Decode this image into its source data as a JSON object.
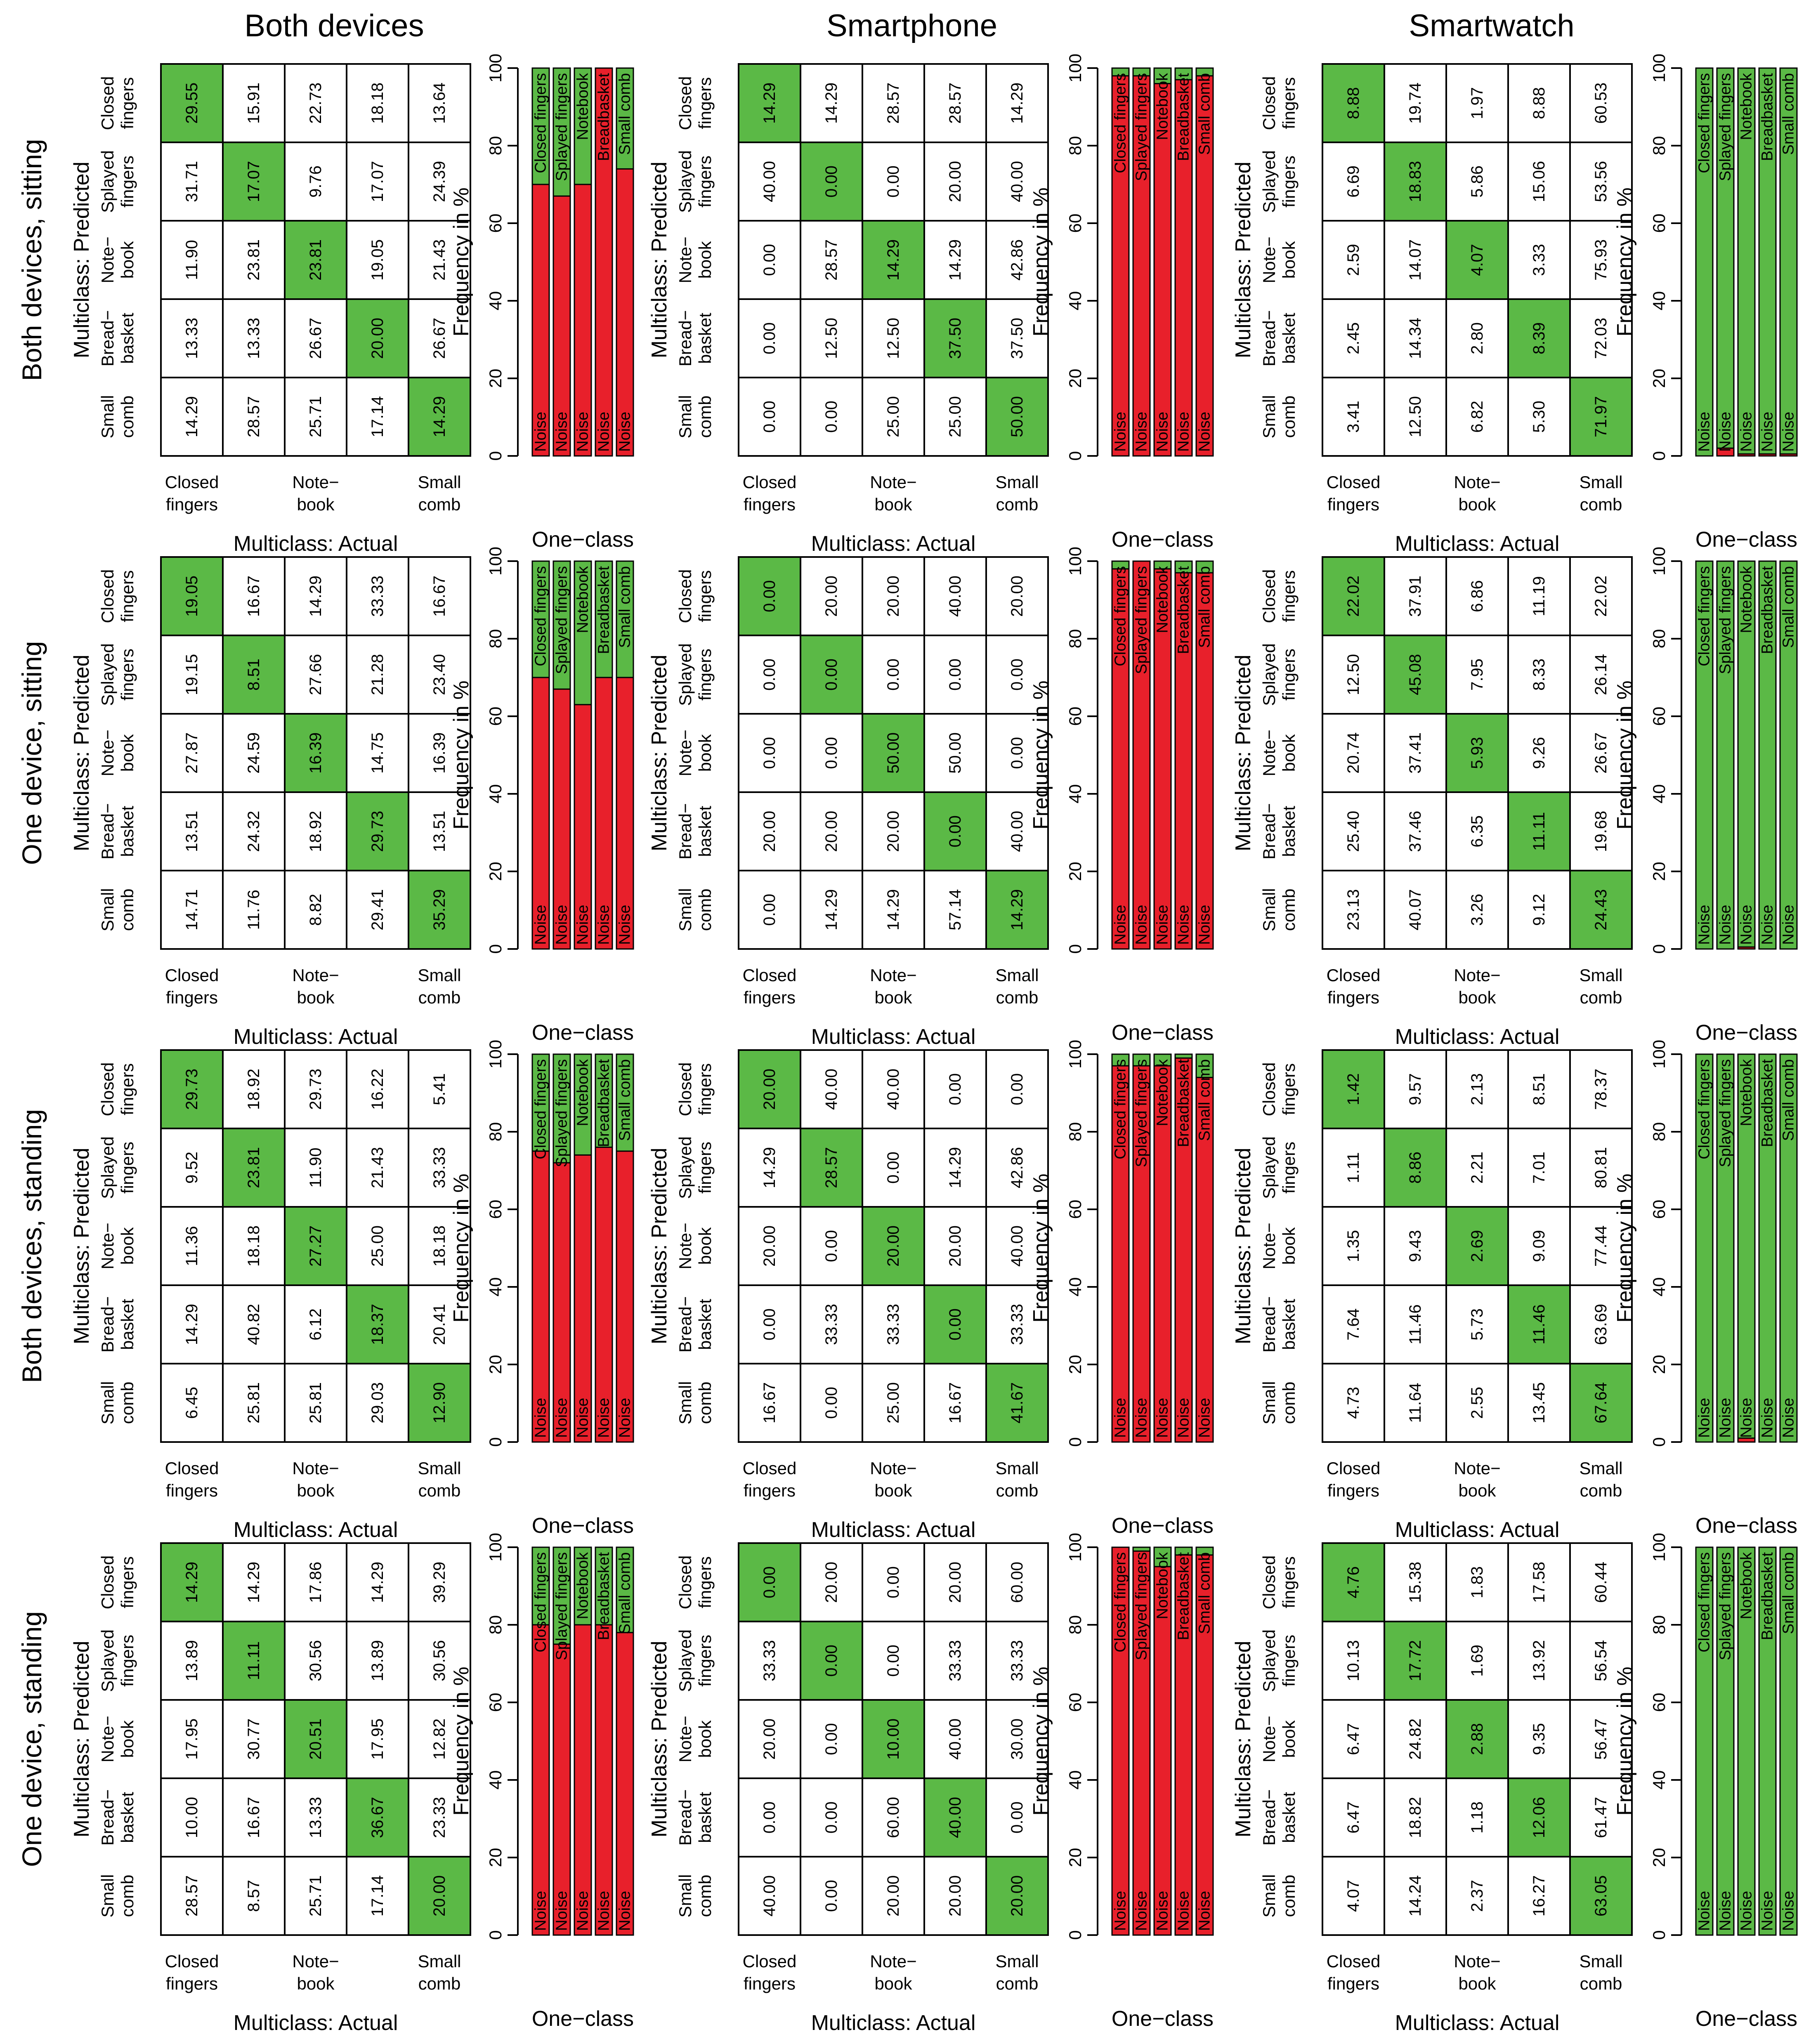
{
  "colors": {
    "correct": "#5bb946",
    "noise": "#e8202b",
    "grid": "#000000"
  },
  "columns": [
    "Both devices",
    "Smartphone",
    "Smartwatch"
  ],
  "rows": [
    "Both devices, sitting",
    "One device, sitting",
    "Both devices, standing",
    "One device, standing"
  ],
  "labels": {
    "ylabel_matrix": "Multiclass: Predicted",
    "xlabel_matrix": "Multiclass: Actual",
    "ylabel_bar": "Frequency in %",
    "xlabel_bar": "One−class",
    "predicted_classes": [
      [
        "Closed",
        "fingers"
      ],
      [
        "Splayed",
        "fingers"
      ],
      [
        "Note−",
        "book"
      ],
      [
        "Bread−",
        "basket"
      ],
      [
        "Small",
        "comb"
      ]
    ],
    "actual_ticks": [
      [
        "Closed",
        "fingers"
      ],
      [
        "Note−",
        "book"
      ],
      [
        "Small",
        "comb"
      ]
    ],
    "bar_ticks": [
      "0",
      "20",
      "40",
      "60",
      "80",
      "100"
    ],
    "noise": "Noise",
    "gestures": [
      "Closed fingers",
      "Splayed fingers",
      "Notebook",
      "Breadbasket",
      "Small comb"
    ]
  },
  "chart_data": [
    {
      "type": "heatmap",
      "column": "Both devices",
      "row": "Both devices, sitting",
      "values": [
        [
          "29.55",
          "15.91",
          "22.73",
          "18.18",
          "13.64"
        ],
        [
          "31.71",
          "17.07",
          "9.76",
          "17.07",
          "24.39"
        ],
        [
          "11.90",
          "23.81",
          "23.81",
          "19.05",
          "21.43"
        ],
        [
          "13.33",
          "13.33",
          "26.67",
          "20.00",
          "26.67"
        ],
        [
          "14.29",
          "28.57",
          "25.71",
          "17.14",
          "14.29"
        ]
      ]
    },
    {
      "type": "bar",
      "column": "Both devices",
      "row": "Both devices, sitting",
      "ylim": [
        0,
        100
      ],
      "categories": [
        "Closed fingers",
        "Splayed fingers",
        "Notebook",
        "Breadbasket",
        "Small comb"
      ],
      "noise": [
        70,
        67,
        70,
        100,
        74
      ]
    },
    {
      "type": "heatmap",
      "column": "Smartphone",
      "row": "Both devices, sitting",
      "values": [
        [
          "14.29",
          "14.29",
          "28.57",
          "28.57",
          "14.29"
        ],
        [
          "40.00",
          "0.00",
          "0.00",
          "20.00",
          "40.00"
        ],
        [
          "0.00",
          "28.57",
          "14.29",
          "14.29",
          "42.86"
        ],
        [
          "0.00",
          "12.50",
          "12.50",
          "37.50",
          "37.50"
        ],
        [
          "0.00",
          "0.00",
          "25.00",
          "25.00",
          "50.00"
        ]
      ]
    },
    {
      "type": "bar",
      "column": "Smartphone",
      "row": "Both devices, sitting",
      "ylim": [
        0,
        100
      ],
      "categories": [
        "Closed fingers",
        "Splayed fingers",
        "Notebook",
        "Breadbasket",
        "Small comb"
      ],
      "noise": [
        98,
        98,
        96,
        97,
        98
      ]
    },
    {
      "type": "heatmap",
      "column": "Smartwatch",
      "row": "Both devices, sitting",
      "values": [
        [
          "8.88",
          "19.74",
          "1.97",
          "8.88",
          "60.53"
        ],
        [
          "6.69",
          "18.83",
          "5.86",
          "15.06",
          "53.56"
        ],
        [
          "2.59",
          "14.07",
          "4.07",
          "3.33",
          "75.93"
        ],
        [
          "2.45",
          "14.34",
          "2.80",
          "8.39",
          "72.03"
        ],
        [
          "3.41",
          "12.50",
          "6.82",
          "5.30",
          "71.97"
        ]
      ]
    },
    {
      "type": "bar",
      "column": "Smartwatch",
      "row": "Both devices, sitting",
      "ylim": [
        0,
        100
      ],
      "categories": [
        "Closed fingers",
        "Splayed fingers",
        "Notebook",
        "Breadbasket",
        "Small comb"
      ],
      "noise": [
        0,
        2,
        0.5,
        0.5,
        0.5
      ]
    },
    {
      "type": "heatmap",
      "column": "Both devices",
      "row": "One device, sitting",
      "values": [
        [
          "19.05",
          "16.67",
          "14.29",
          "33.33",
          "16.67"
        ],
        [
          "19.15",
          "8.51",
          "27.66",
          "21.28",
          "23.40"
        ],
        [
          "27.87",
          "24.59",
          "16.39",
          "14.75",
          "16.39"
        ],
        [
          "13.51",
          "24.32",
          "18.92",
          "29.73",
          "13.51"
        ],
        [
          "14.71",
          "11.76",
          "8.82",
          "29.41",
          "35.29"
        ]
      ]
    },
    {
      "type": "bar",
      "column": "Both devices",
      "row": "One device, sitting",
      "ylim": [
        0,
        100
      ],
      "categories": [
        "Closed fingers",
        "Splayed fingers",
        "Notebook",
        "Breadbasket",
        "Small comb"
      ],
      "noise": [
        70,
        67,
        63,
        70,
        70
      ]
    },
    {
      "type": "heatmap",
      "column": "Smartphone",
      "row": "One device, sitting",
      "values": [
        [
          "0.00",
          "20.00",
          "20.00",
          "40.00",
          "20.00"
        ],
        [
          "0.00",
          "0.00",
          "0.00",
          "0.00",
          "0.00"
        ],
        [
          "0.00",
          "0.00",
          "50.00",
          "50.00",
          "0.00"
        ],
        [
          "20.00",
          "20.00",
          "20.00",
          "0.00",
          "40.00"
        ],
        [
          "0.00",
          "14.29",
          "14.29",
          "57.14",
          "14.29"
        ]
      ]
    },
    {
      "type": "bar",
      "column": "Smartphone",
      "row": "One device, sitting",
      "ylim": [
        0,
        100
      ],
      "categories": [
        "Closed fingers",
        "Splayed fingers",
        "Notebook",
        "Breadbasket",
        "Small comb"
      ],
      "noise": [
        98,
        100,
        98,
        97,
        97
      ]
    },
    {
      "type": "heatmap",
      "column": "Smartwatch",
      "row": "One device, sitting",
      "values": [
        [
          "22.02",
          "37.91",
          "6.86",
          "11.19",
          "22.02"
        ],
        [
          "12.50",
          "45.08",
          "7.95",
          "8.33",
          "26.14"
        ],
        [
          "20.74",
          "37.41",
          "5.93",
          "9.26",
          "26.67"
        ],
        [
          "25.40",
          "37.46",
          "6.35",
          "11.11",
          "19.68"
        ],
        [
          "23.13",
          "40.07",
          "3.26",
          "9.12",
          "24.43"
        ]
      ]
    },
    {
      "type": "bar",
      "column": "Smartwatch",
      "row": "One device, sitting",
      "ylim": [
        0,
        100
      ],
      "categories": [
        "Closed fingers",
        "Splayed fingers",
        "Notebook",
        "Breadbasket",
        "Small comb"
      ],
      "noise": [
        0,
        0,
        0.5,
        0,
        0
      ]
    },
    {
      "type": "heatmap",
      "column": "Both devices",
      "row": "Both devices, standing",
      "values": [
        [
          "29.73",
          "18.92",
          "29.73",
          "16.22",
          "5.41"
        ],
        [
          "9.52",
          "23.81",
          "11.90",
          "21.43",
          "33.33"
        ],
        [
          "11.36",
          "18.18",
          "27.27",
          "25.00",
          "18.18"
        ],
        [
          "14.29",
          "40.82",
          "6.12",
          "18.37",
          "20.41"
        ],
        [
          "6.45",
          "25.81",
          "25.81",
          "29.03",
          "12.90"
        ]
      ]
    },
    {
      "type": "bar",
      "column": "Both devices",
      "row": "Both devices, standing",
      "ylim": [
        0,
        100
      ],
      "categories": [
        "Closed fingers",
        "Splayed fingers",
        "Notebook",
        "Breadbasket",
        "Small comb"
      ],
      "noise": [
        75,
        72,
        74,
        76,
        75
      ]
    },
    {
      "type": "heatmap",
      "column": "Smartphone",
      "row": "Both devices, standing",
      "values": [
        [
          "20.00",
          "40.00",
          "40.00",
          "0.00",
          "0.00"
        ],
        [
          "14.29",
          "28.57",
          "0.00",
          "14.29",
          "42.86"
        ],
        [
          "20.00",
          "0.00",
          "20.00",
          "20.00",
          "40.00"
        ],
        [
          "0.00",
          "33.33",
          "33.33",
          "0.00",
          "33.33"
        ],
        [
          "16.67",
          "0.00",
          "25.00",
          "16.67",
          "41.67"
        ]
      ]
    },
    {
      "type": "bar",
      "column": "Smartphone",
      "row": "Both devices, standing",
      "ylim": [
        0,
        100
      ],
      "categories": [
        "Closed fingers",
        "Splayed fingers",
        "Notebook",
        "Breadbasket",
        "Small comb"
      ],
      "noise": [
        97,
        97,
        97,
        99,
        94
      ]
    },
    {
      "type": "heatmap",
      "column": "Smartwatch",
      "row": "Both devices, standing",
      "values": [
        [
          "1.42",
          "9.57",
          "2.13",
          "8.51",
          "78.37"
        ],
        [
          "1.11",
          "8.86",
          "2.21",
          "7.01",
          "80.81"
        ],
        [
          "1.35",
          "9.43",
          "2.69",
          "9.09",
          "77.44"
        ],
        [
          "7.64",
          "11.46",
          "5.73",
          "11.46",
          "63.69"
        ],
        [
          "4.73",
          "11.64",
          "2.55",
          "13.45",
          "67.64"
        ]
      ]
    },
    {
      "type": "bar",
      "column": "Smartwatch",
      "row": "Both devices, standing",
      "ylim": [
        0,
        100
      ],
      "categories": [
        "Closed fingers",
        "Splayed fingers",
        "Notebook",
        "Breadbasket",
        "Small comb"
      ],
      "noise": [
        0,
        0,
        1,
        0,
        0
      ]
    },
    {
      "type": "heatmap",
      "column": "Both devices",
      "row": "One device, standing",
      "values": [
        [
          "14.29",
          "14.29",
          "17.86",
          "14.29",
          "39.29"
        ],
        [
          "13.89",
          "11.11",
          "30.56",
          "13.89",
          "30.56"
        ],
        [
          "17.95",
          "30.77",
          "20.51",
          "17.95",
          "12.82"
        ],
        [
          "10.00",
          "16.67",
          "13.33",
          "36.67",
          "23.33"
        ],
        [
          "28.57",
          "8.57",
          "25.71",
          "17.14",
          "20.00"
        ]
      ]
    },
    {
      "type": "bar",
      "column": "Both devices",
      "row": "One device, standing",
      "ylim": [
        0,
        100
      ],
      "categories": [
        "Closed fingers",
        "Splayed fingers",
        "Notebook",
        "Breadbasket",
        "Small comb"
      ],
      "noise": [
        80,
        75,
        80,
        80,
        78
      ]
    },
    {
      "type": "heatmap",
      "column": "Smartphone",
      "row": "One device, standing",
      "values": [
        [
          "0.00",
          "20.00",
          "0.00",
          "20.00",
          "60.00"
        ],
        [
          "33.33",
          "0.00",
          "0.00",
          "33.33",
          "33.33"
        ],
        [
          "20.00",
          "0.00",
          "10.00",
          "40.00",
          "30.00"
        ],
        [
          "0.00",
          "0.00",
          "60.00",
          "40.00",
          "0.00"
        ],
        [
          "40.00",
          "0.00",
          "20.00",
          "20.00",
          "20.00"
        ]
      ]
    },
    {
      "type": "bar",
      "column": "Smartphone",
      "row": "One device, standing",
      "ylim": [
        0,
        100
      ],
      "categories": [
        "Closed fingers",
        "Splayed fingers",
        "Notebook",
        "Breadbasket",
        "Small comb"
      ],
      "noise": [
        100,
        99,
        95,
        98,
        98
      ]
    },
    {
      "type": "heatmap",
      "column": "Smartwatch",
      "row": "One device, standing",
      "values": [
        [
          "4.76",
          "15.38",
          "1.83",
          "17.58",
          "60.44"
        ],
        [
          "10.13",
          "17.72",
          "1.69",
          "13.92",
          "56.54"
        ],
        [
          "6.47",
          "24.82",
          "2.88",
          "9.35",
          "56.47"
        ],
        [
          "6.47",
          "18.82",
          "1.18",
          "12.06",
          "61.47"
        ],
        [
          "4.07",
          "14.24",
          "2.37",
          "16.27",
          "63.05"
        ]
      ]
    },
    {
      "type": "bar",
      "column": "Smartwatch",
      "row": "One device, standing",
      "ylim": [
        0,
        100
      ],
      "categories": [
        "Closed fingers",
        "Splayed fingers",
        "Notebook",
        "Breadbasket",
        "Small comb"
      ],
      "noise": [
        0,
        0,
        0,
        0,
        0
      ]
    }
  ]
}
